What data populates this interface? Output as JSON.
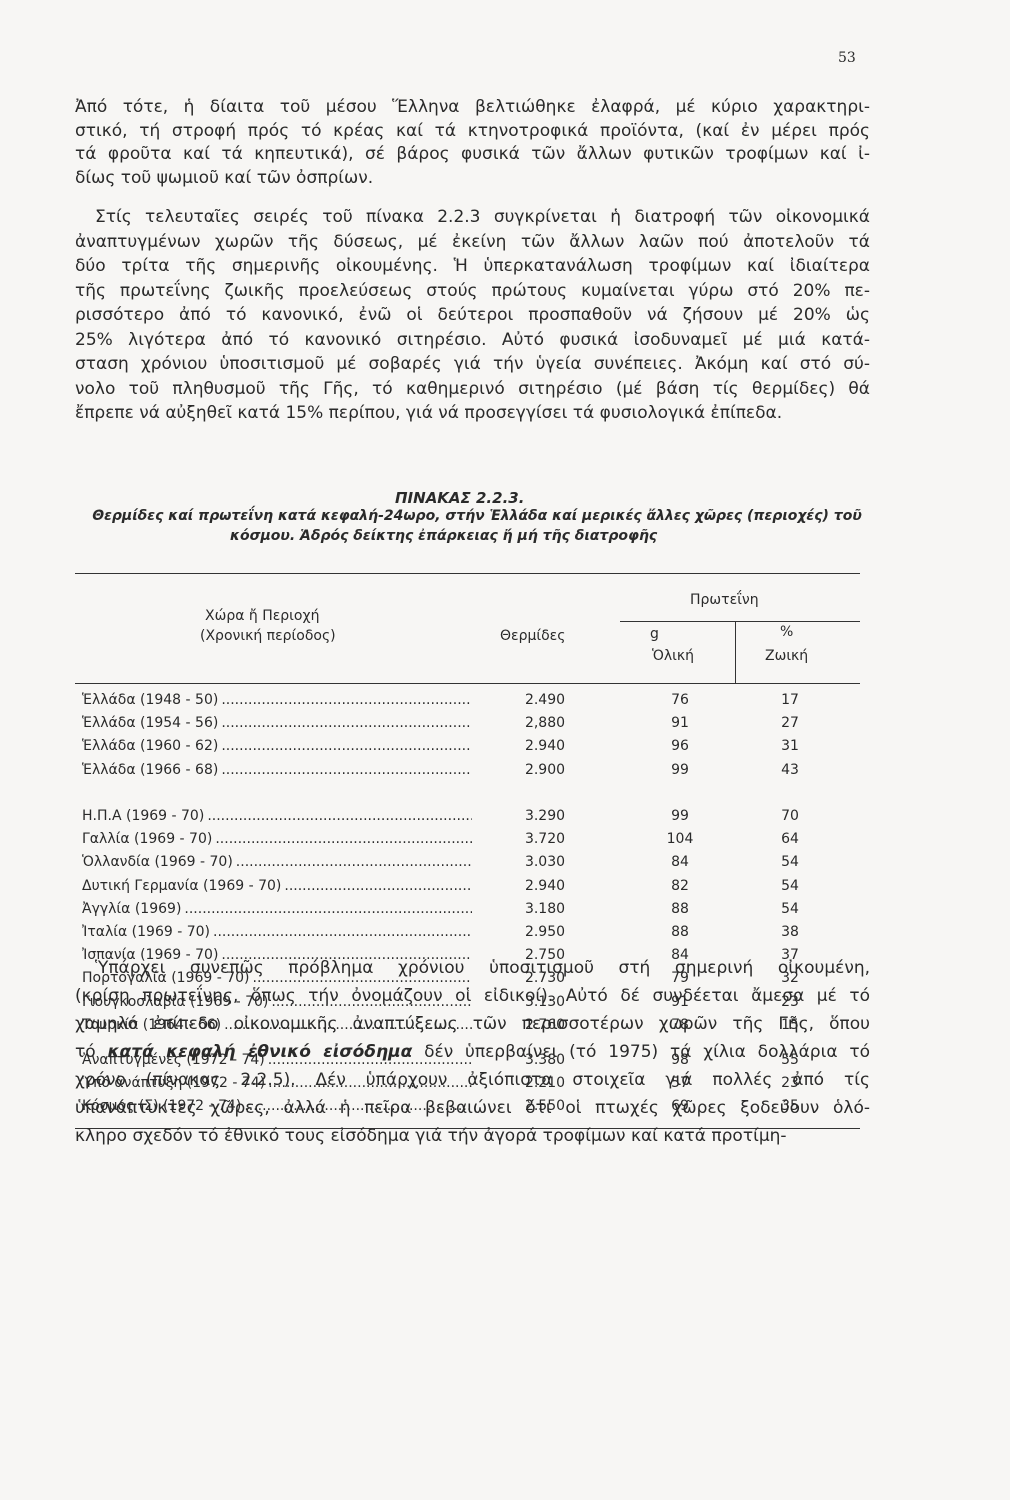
{
  "page_number": "53",
  "paragraphs": [
    {
      "lines": [
        "Ἀπό τότε, ἡ δίαιτα τοῦ μέσου Ἕλληνα βελτιώθηκε ἐλαφρά, μέ κύριο χαρακτηρι-",
        "στικό, τή στροφή πρός τό κρέας καί τά κτηνοτροφικά προϊόντα, (καί ἐν μέρει πρός",
        "τά φροῦτα καί τά κηπευτικά), σέ βάρος φυσικά τῶν ἄλλων φυτικῶν τροφίμων καί ἰ-",
        "δίως τοῦ ψωμιοῦ καί τῶν ὀσπρίων."
      ]
    },
    {
      "lines": [
        "Στίς τελευταῖες σειρές τοῦ πίνακα 2.2.3 συγκρίνεται ἡ διατροφή τῶν οἰκονομικά",
        "ἀναπτυγμένων χωρῶν τῆς δύσεως, μέ ἐκείνη τῶν ἄλλων λαῶν πού ἀποτελοῦν τά",
        "δύο τρίτα τῆς σημερινῆς οἰκουμένης. Ἡ ὑπερκατανάλωση τροφίμων καί ἰδιαίτερα",
        "τῆς πρωτεΐνης ζωικῆς προελεύσεως στούς πρώτους κυμαίνεται γύρω στό 20% πε-",
        "ρισσότερο ἀπό τό κανονικό, ἐνῶ οἱ δεύτεροι προσπαθοῦν νά ζήσουν μέ 20% ὡς",
        "25% λιγότερα ἀπό τό κανονικό σιτηρέσιο. Αὐτό φυσικά ἰσοδυναμεῖ μέ μιά κατά-",
        "σταση χρόνιου ὑποσιτισμοῦ μέ σοβαρές γιά τήν ὑγεία συνέπειες. Ἀκόμη καί στό σύ-",
        "νολο τοῦ πληθυσμοῦ τῆς Γῆς, τό καθημερινό σιτηρέσιο (μέ βάση τίς θερμίδες) θά",
        "ἔπρεπε νά αὐξηθεῖ κατά 15% περίπου, γιά νά προσεγγίσει τά φυσιολογικά ἐπίπεδα."
      ]
    },
    {
      "lines": [
        "Ὑπάρχει συνεπῶς πρόβλημα χρόνιου ὑποσιτισμοῦ στή σημερινή οἰκουμένη,",
        "(κρίση πρωτεΐνης, ὅπως τήν ὀνομάζουν οἱ εἰδικοί). Αὐτό δέ συνδέεται ἄμεσα μέ τό",
        "χαμηλό ἐπίπεδο οἰκονομικῆς ἀναπτύξεως τῶν περισσοτέρων χωρῶν τῆς Γῆς, ὅπου",
        {
          "before": "τό",
          "bold": "κατά κεφαλή ἐθνικό εἰσόδημα",
          "after": "δέν ὑπερβαίνει (τό 1975) τά χίλια δολλάρια τό"
        },
        "χρόνο (πίνακας 2.2.5). Δέν ὑπάρχουν ἀξιόπιστα στοιχεῖα γιά πολλές ἀπό τίς",
        "ὑπανάπτυκτες χῶρες, ἀλλά ἡ πεῖρα βεβαιώνει ὅτι οἱ πτωχές χῶρες ξοδεύουν ὁλό-",
        "κληρο σχεδόν τό ἐθνικό τους εἰσόδημα γιά τήν ἀγορά τροφίμων καί κατά προτίμη-"
      ]
    }
  ],
  "table": {
    "title": "ΠΙΝΑΚΑΣ 2.2.3.",
    "caption_lines": [
      "Θερμίδες καί πρωτεΐνη κατά κεφαλή-24ωρο, στήν Ἑλλάδα καί μερικές ἄλλες χῶρες (περιοχές) τοῦ",
      "κόσμου. Ἁδρός δείκτης ἐπάρκειας ἤ μή τῆς διατροφῆς"
    ],
    "headers": {
      "country": "Χώρα ἤ Περιοχή",
      "period": "(Χρονική περίοδος)",
      "calories": "Θερμίδες",
      "protein": "Πρωτεΐνη",
      "grams": "g",
      "total": "Ὁλική",
      "percent": "%",
      "animal": "Ζωική"
    },
    "groups": [
      [
        [
          "Ἑλλάδα (1948 - 50)",
          "2.490",
          "76",
          "17"
        ],
        [
          "Ἑλλάδα (1954 - 56)",
          "2,880",
          "91",
          "27"
        ],
        [
          "Ἑλλάδα (1960 - 62)",
          "2.940",
          "96",
          "31"
        ],
        [
          "Ἑλλάδα (1966 - 68)",
          "2.900",
          "99",
          "43"
        ]
      ],
      [
        [
          "Η.Π.Α (1969 - 70)",
          "3.290",
          "99",
          "70"
        ],
        [
          "Γαλλία (1969 - 70)",
          "3.720",
          "104",
          "64"
        ],
        [
          "Ὁλλανδία (1969 - 70)",
          "3.030",
          "84",
          "54"
        ],
        [
          "Δυτική Γερμανία (1969 - 70)",
          "2.940",
          "82",
          "54"
        ],
        [
          "Ἀγγλία (1969)",
          "3.180",
          "88",
          "54"
        ],
        [
          "Ἰταλία (1969 - 70)",
          "2.950",
          "88",
          "38"
        ],
        [
          "Ἰσπανία (1969 - 70)",
          "2.750",
          "84",
          "37"
        ],
        [
          "Πορτογαλία (1969 - 70)",
          "2.730",
          "79",
          "32"
        ],
        [
          "Γιουγκοσλαβία (1969 - 70)",
          "3.130",
          "91",
          "23"
        ],
        [
          "Τουρκία (1964 - 66)",
          "2.760",
          "78",
          "15"
        ]
      ],
      [
        [
          "Ἀναπτυγμένες (1972 - 74)",
          "3.380",
          "98",
          "55"
        ],
        [
          "Ὑπό ἀνάπτυξη (1972 - 74)",
          "2.210",
          "57",
          "23"
        ],
        [
          "Κόσμος (Σ) (1972 - 74)",
          "2.550",
          "69",
          "35"
        ]
      ]
    ]
  }
}
